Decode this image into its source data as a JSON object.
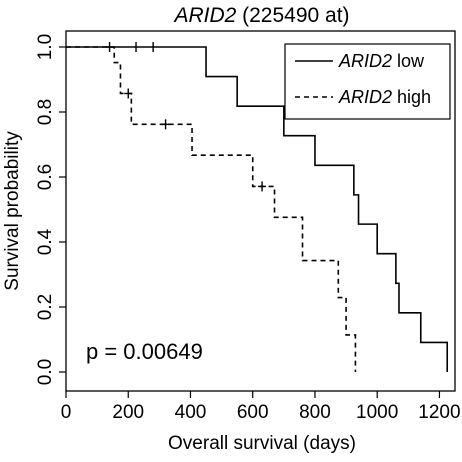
{
  "chart_data": {
    "type": "line",
    "title_gene": "ARID2",
    "title_rest": " (225490 at)",
    "xlabel": "Overall survival (days)",
    "ylabel": "Survival probability",
    "xlim": [
      0,
      1250
    ],
    "ylim": [
      0,
      1.0
    ],
    "xticks": [
      0,
      200,
      400,
      600,
      800,
      1000,
      1200
    ],
    "yticks": [
      0.0,
      0.2,
      0.4,
      0.6,
      0.8,
      1.0
    ],
    "ytick_labels": [
      "0.0",
      "0.2",
      "0.4",
      "0.6",
      "0.8",
      "1.0"
    ],
    "grid": false,
    "legend_position": "top-right",
    "annotation": "p = 0.00649",
    "series": [
      {
        "name_gene": "ARID2",
        "name_rest": " low",
        "style": "solid",
        "steps": [
          [
            0,
            1.0
          ],
          [
            450,
            0.909
          ],
          [
            550,
            0.818
          ],
          [
            700,
            0.727
          ],
          [
            800,
            0.636
          ],
          [
            925,
            0.545
          ],
          [
            940,
            0.455
          ],
          [
            1000,
            0.364
          ],
          [
            1060,
            0.273
          ],
          [
            1070,
            0.182
          ],
          [
            1140,
            0.091
          ],
          [
            1225,
            0.0
          ]
        ],
        "censored": [
          [
            225,
            1.0
          ],
          [
            280,
            1.0
          ]
        ]
      },
      {
        "name_gene": "ARID2",
        "name_rest": " high",
        "style": "dashed",
        "steps": [
          [
            0,
            1.0
          ],
          [
            155,
            0.952
          ],
          [
            175,
            0.857
          ],
          [
            210,
            0.762
          ],
          [
            405,
            0.667
          ],
          [
            600,
            0.571
          ],
          [
            670,
            0.476
          ],
          [
            760,
            0.343
          ],
          [
            875,
            0.229
          ],
          [
            900,
            0.114
          ],
          [
            930,
            0.0
          ]
        ],
        "censored": [
          [
            140,
            1.0
          ],
          [
            200,
            0.857
          ],
          [
            320,
            0.762
          ],
          [
            630,
            0.571
          ]
        ]
      }
    ]
  }
}
